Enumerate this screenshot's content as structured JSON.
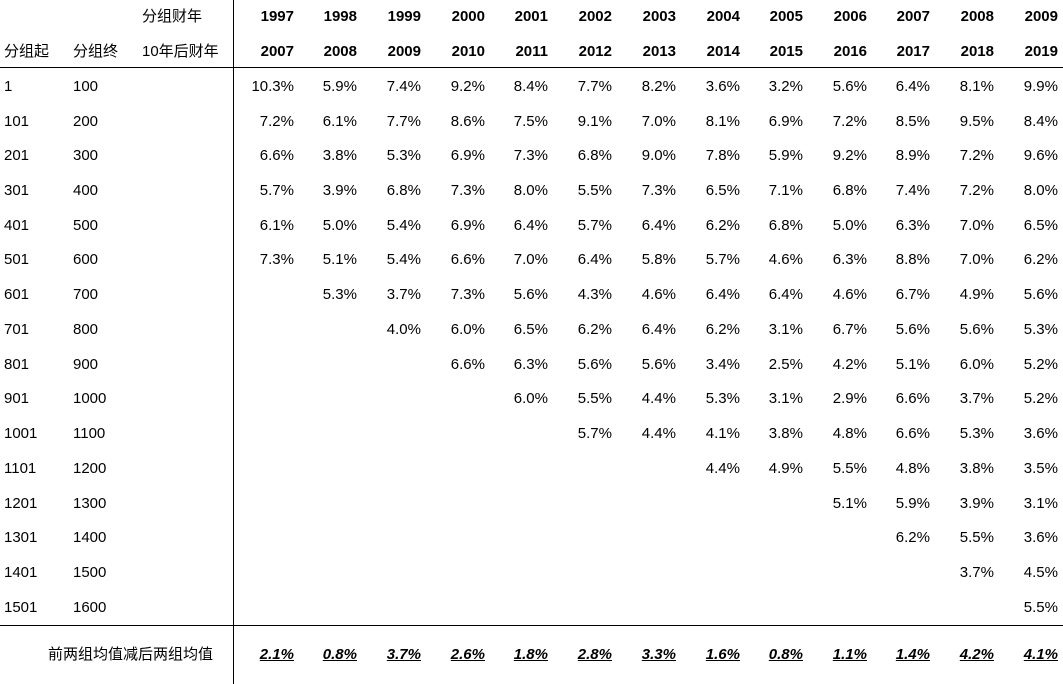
{
  "header": {
    "fy_group_label": "分组财年",
    "group_start_label": "分组起",
    "group_end_label": "分组终",
    "fy_after_label": "10年后财年",
    "years_top": [
      "1997",
      "1998",
      "1999",
      "2000",
      "2001",
      "2002",
      "2003",
      "2004",
      "2005",
      "2006",
      "2007",
      "2008",
      "2009"
    ],
    "years_bottom": [
      "2007",
      "2008",
      "2009",
      "2010",
      "2011",
      "2012",
      "2013",
      "2014",
      "2015",
      "2016",
      "2017",
      "2018",
      "2019"
    ]
  },
  "rows": [
    {
      "start": "1",
      "end": "100",
      "values": [
        "10.3%",
        "5.9%",
        "7.4%",
        "9.2%",
        "8.4%",
        "7.7%",
        "8.2%",
        "3.6%",
        "3.2%",
        "5.6%",
        "6.4%",
        "8.1%",
        "9.9%"
      ]
    },
    {
      "start": "101",
      "end": "200",
      "values": [
        "7.2%",
        "6.1%",
        "7.7%",
        "8.6%",
        "7.5%",
        "9.1%",
        "7.0%",
        "8.1%",
        "6.9%",
        "7.2%",
        "8.5%",
        "9.5%",
        "8.4%"
      ]
    },
    {
      "start": "201",
      "end": "300",
      "values": [
        "6.6%",
        "3.8%",
        "5.3%",
        "6.9%",
        "7.3%",
        "6.8%",
        "9.0%",
        "7.8%",
        "5.9%",
        "9.2%",
        "8.9%",
        "7.2%",
        "9.6%"
      ]
    },
    {
      "start": "301",
      "end": "400",
      "values": [
        "5.7%",
        "3.9%",
        "6.8%",
        "7.3%",
        "8.0%",
        "5.5%",
        "7.3%",
        "6.5%",
        "7.1%",
        "6.8%",
        "7.4%",
        "7.2%",
        "8.0%"
      ]
    },
    {
      "start": "401",
      "end": "500",
      "values": [
        "6.1%",
        "5.0%",
        "5.4%",
        "6.9%",
        "6.4%",
        "5.7%",
        "6.4%",
        "6.2%",
        "6.8%",
        "5.0%",
        "6.3%",
        "7.0%",
        "6.5%"
      ]
    },
    {
      "start": "501",
      "end": "600",
      "values": [
        "7.3%",
        "5.1%",
        "5.4%",
        "6.6%",
        "7.0%",
        "6.4%",
        "5.8%",
        "5.7%",
        "4.6%",
        "6.3%",
        "8.8%",
        "7.0%",
        "6.2%"
      ]
    },
    {
      "start": "601",
      "end": "700",
      "values": [
        "",
        "5.3%",
        "3.7%",
        "7.3%",
        "5.6%",
        "4.3%",
        "4.6%",
        "6.4%",
        "6.4%",
        "4.6%",
        "6.7%",
        "4.9%",
        "5.6%"
      ]
    },
    {
      "start": "701",
      "end": "800",
      "values": [
        "",
        "",
        "4.0%",
        "6.0%",
        "6.5%",
        "6.2%",
        "6.4%",
        "6.2%",
        "3.1%",
        "6.7%",
        "5.6%",
        "5.6%",
        "5.3%"
      ]
    },
    {
      "start": "801",
      "end": "900",
      "values": [
        "",
        "",
        "",
        "6.6%",
        "6.3%",
        "5.6%",
        "5.6%",
        "3.4%",
        "2.5%",
        "4.2%",
        "5.1%",
        "6.0%",
        "5.2%"
      ]
    },
    {
      "start": "901",
      "end": "1000",
      "values": [
        "",
        "",
        "",
        "",
        "6.0%",
        "5.5%",
        "4.4%",
        "5.3%",
        "3.1%",
        "2.9%",
        "6.6%",
        "3.7%",
        "5.2%"
      ]
    },
    {
      "start": "1001",
      "end": "1100",
      "values": [
        "",
        "",
        "",
        "",
        "",
        "5.7%",
        "4.4%",
        "4.1%",
        "3.8%",
        "4.8%",
        "6.6%",
        "5.3%",
        "3.6%"
      ]
    },
    {
      "start": "1101",
      "end": "1200",
      "values": [
        "",
        "",
        "",
        "",
        "",
        "",
        "",
        "4.4%",
        "4.9%",
        "5.5%",
        "4.8%",
        "3.8%",
        "3.5%"
      ]
    },
    {
      "start": "1201",
      "end": "1300",
      "values": [
        "",
        "",
        "",
        "",
        "",
        "",
        "",
        "",
        "",
        "5.1%",
        "5.9%",
        "3.9%",
        "3.1%"
      ]
    },
    {
      "start": "1301",
      "end": "1400",
      "values": [
        "",
        "",
        "",
        "",
        "",
        "",
        "",
        "",
        "",
        "",
        "6.2%",
        "5.5%",
        "3.6%"
      ]
    },
    {
      "start": "1401",
      "end": "1500",
      "values": [
        "",
        "",
        "",
        "",
        "",
        "",
        "",
        "",
        "",
        "",
        "",
        "3.7%",
        "4.5%"
      ]
    },
    {
      "start": "1501",
      "end": "1600",
      "values": [
        "",
        "",
        "",
        "",
        "",
        "",
        "",
        "",
        "",
        "",
        "",
        "",
        "5.5%"
      ]
    }
  ],
  "footer": {
    "label": "前两组均值减后两组均值",
    "values": [
      "2.1%",
      "0.8%",
      "3.7%",
      "2.6%",
      "1.8%",
      "2.8%",
      "3.3%",
      "1.6%",
      "0.8%",
      "1.1%",
      "1.4%",
      "4.2%",
      "4.1%"
    ]
  }
}
